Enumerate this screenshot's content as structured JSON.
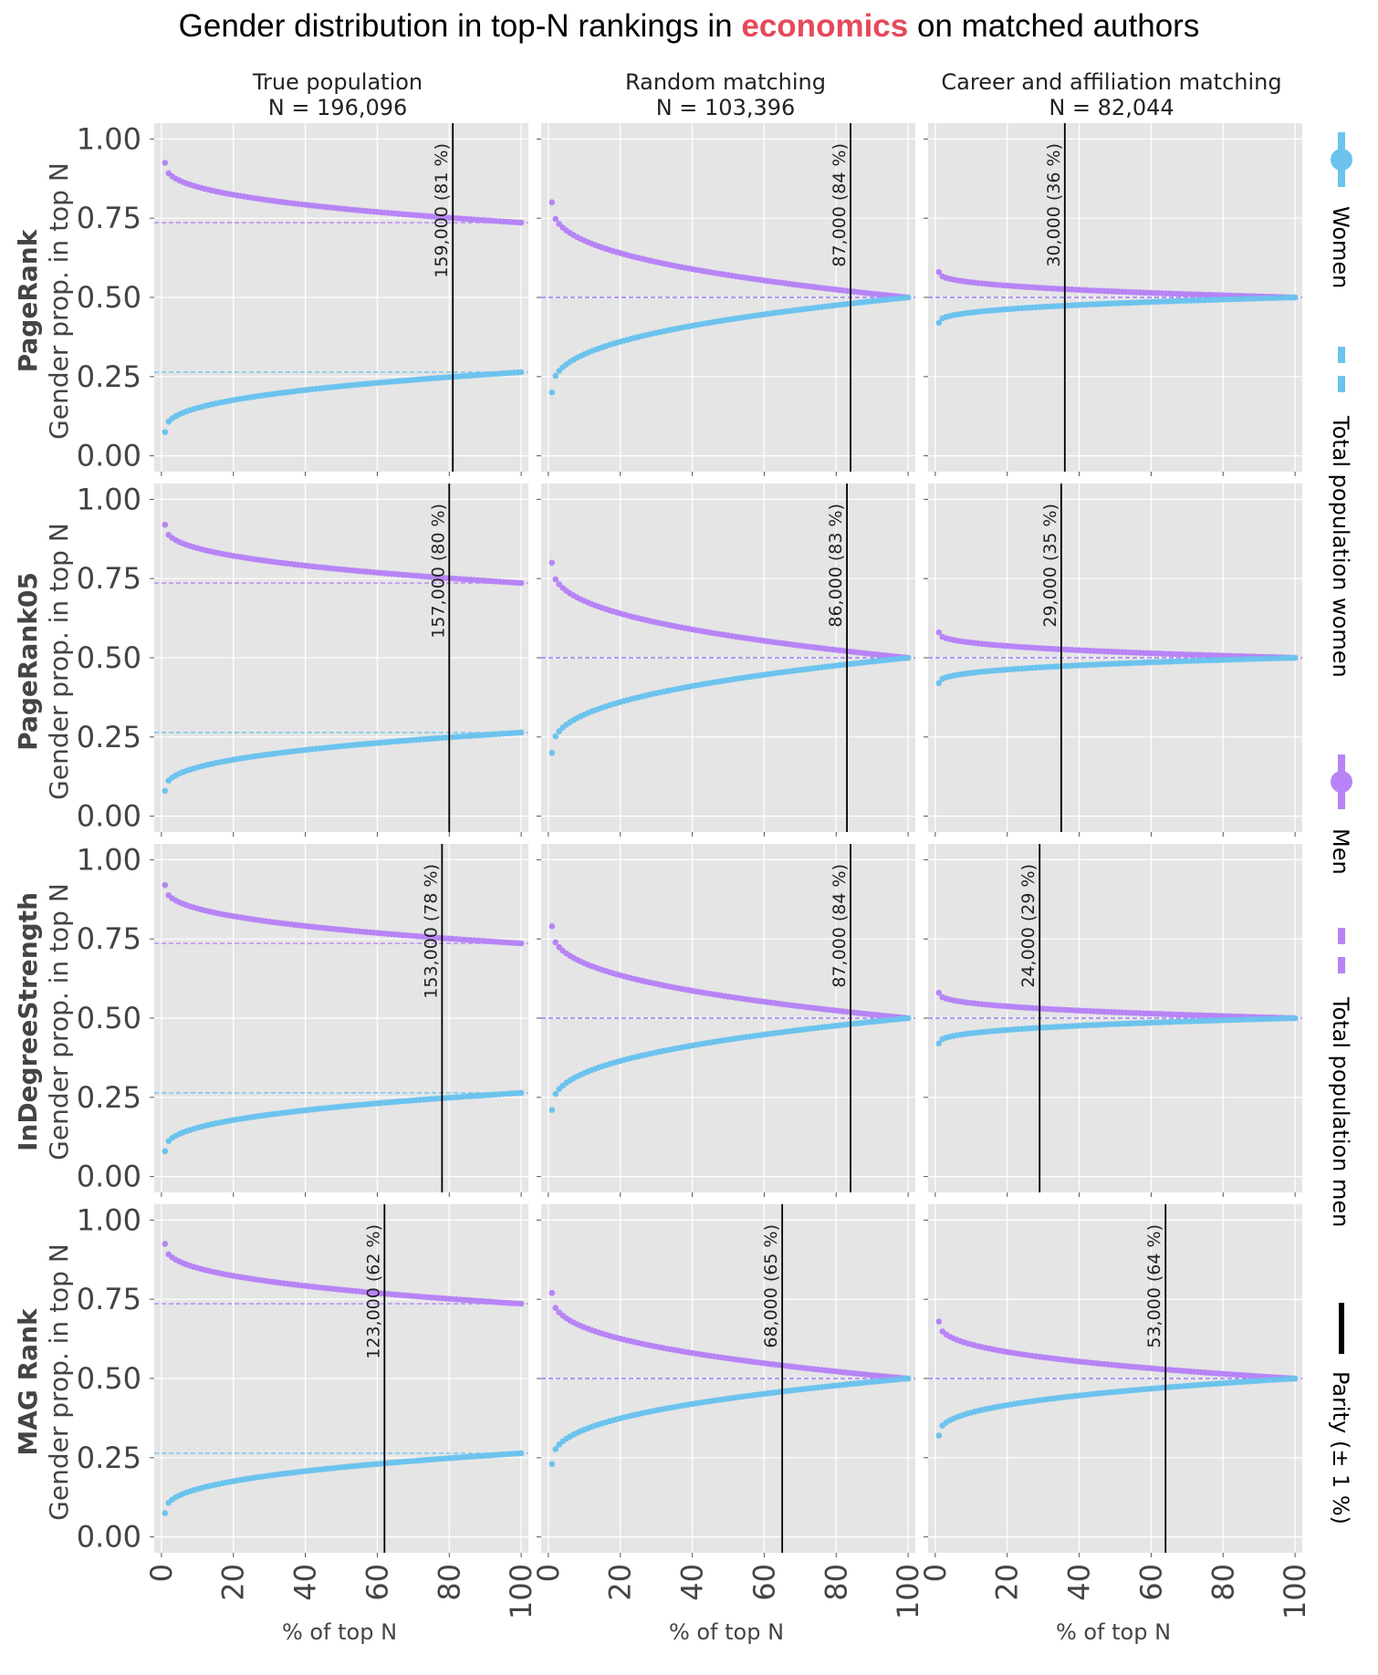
{
  "title": {
    "prefix": "Gender distribution in top-N rankings in ",
    "highlight": "economics",
    "suffix": " on matched authors",
    "highlight_color": "#e5495a"
  },
  "columns": [
    {
      "title": "True population",
      "n_label": "N = 196,096"
    },
    {
      "title": "Random matching",
      "n_label": "N = 103,396"
    },
    {
      "title": "Career and affiliation matching",
      "n_label": "N = 82,044"
    }
  ],
  "rows": [
    {
      "metric": "PageRank",
      "ylabel": "Gender prop. in top N"
    },
    {
      "metric": "PageRank05",
      "ylabel": "Gender prop. in top N"
    },
    {
      "metric": "InDegreeStrength",
      "ylabel": "Gender prop. in top N"
    },
    {
      "metric": "MAG Rank",
      "ylabel": "Gender prop. in top N"
    }
  ],
  "xlabel": "% of top N",
  "colors": {
    "women": "#6cc3ee",
    "men": "#b784f6",
    "parity": "#000000",
    "panel_bg": "#e5e5e5"
  },
  "legend": [
    {
      "label": "Women",
      "kind": "marker",
      "color": "#6cc3ee"
    },
    {
      "label": "Total population women",
      "kind": "dashed",
      "color": "#6cc3ee"
    },
    {
      "label": "Men",
      "kind": "marker",
      "color": "#b784f6"
    },
    {
      "label": "Total population men",
      "kind": "dashed",
      "color": "#b784f6"
    },
    {
      "label": "Parity (± 1 %)",
      "kind": "line",
      "color": "#000000"
    }
  ],
  "chart_data": {
    "type": "scatter",
    "layout": "4x3 grid of small multiples",
    "xlim": [
      -2,
      102
    ],
    "ylim": [
      -0.05,
      1.05
    ],
    "xticks": [
      "0",
      "20",
      "40",
      "60",
      "80",
      "100"
    ],
    "yticks": [
      "0.00",
      "0.25",
      "0.50",
      "0.75",
      "1.00"
    ],
    "grid": true,
    "legend_position": "right, rotated vertical",
    "panels": [
      {
        "row": 0,
        "col": 0,
        "women_start": 0.075,
        "women_end": 0.264,
        "total_women": 0.264,
        "total_men": 0.736,
        "parity_x": 81,
        "parity_label": "159,000 (81 %)"
      },
      {
        "row": 0,
        "col": 1,
        "women_start": 0.2,
        "women_end": 0.5,
        "total_women": 0.5,
        "total_men": 0.5,
        "parity_x": 84,
        "parity_label": "87,000 (84 %)"
      },
      {
        "row": 0,
        "col": 2,
        "women_start": 0.42,
        "women_end": 0.5,
        "total_women": 0.5,
        "total_men": 0.5,
        "parity_x": 36,
        "parity_label": "30,000 (36 %)"
      },
      {
        "row": 1,
        "col": 0,
        "women_start": 0.08,
        "women_end": 0.264,
        "total_women": 0.264,
        "total_men": 0.736,
        "parity_x": 80,
        "parity_label": "157,000 (80 %)"
      },
      {
        "row": 1,
        "col": 1,
        "women_start": 0.2,
        "women_end": 0.5,
        "total_women": 0.5,
        "total_men": 0.5,
        "parity_x": 83,
        "parity_label": "86,000 (83 %)"
      },
      {
        "row": 1,
        "col": 2,
        "women_start": 0.42,
        "women_end": 0.5,
        "total_women": 0.5,
        "total_men": 0.5,
        "parity_x": 35,
        "parity_label": "29,000 (35 %)"
      },
      {
        "row": 2,
        "col": 0,
        "women_start": 0.08,
        "women_end": 0.264,
        "total_women": 0.264,
        "total_men": 0.736,
        "parity_x": 78,
        "parity_label": "153,000 (78 %)"
      },
      {
        "row": 2,
        "col": 1,
        "women_start": 0.21,
        "women_end": 0.5,
        "total_women": 0.5,
        "total_men": 0.5,
        "parity_x": 84,
        "parity_label": "87,000 (84 %)"
      },
      {
        "row": 2,
        "col": 2,
        "women_start": 0.42,
        "women_end": 0.5,
        "total_women": 0.5,
        "total_men": 0.5,
        "parity_x": 29,
        "parity_label": "24,000 (29 %)"
      },
      {
        "row": 3,
        "col": 0,
        "women_start": 0.075,
        "women_end": 0.264,
        "total_women": 0.264,
        "total_men": 0.736,
        "parity_x": 62,
        "parity_label": "123,000 (62 %)"
      },
      {
        "row": 3,
        "col": 1,
        "women_start": 0.23,
        "women_end": 0.5,
        "total_women": 0.5,
        "total_men": 0.5,
        "parity_x": 65,
        "parity_label": "68,000 (65 %)"
      },
      {
        "row": 3,
        "col": 2,
        "women_start": 0.32,
        "women_end": 0.5,
        "total_women": 0.5,
        "total_men": 0.5,
        "parity_x": 64,
        "parity_label": "53,000 (64 %)"
      }
    ]
  }
}
